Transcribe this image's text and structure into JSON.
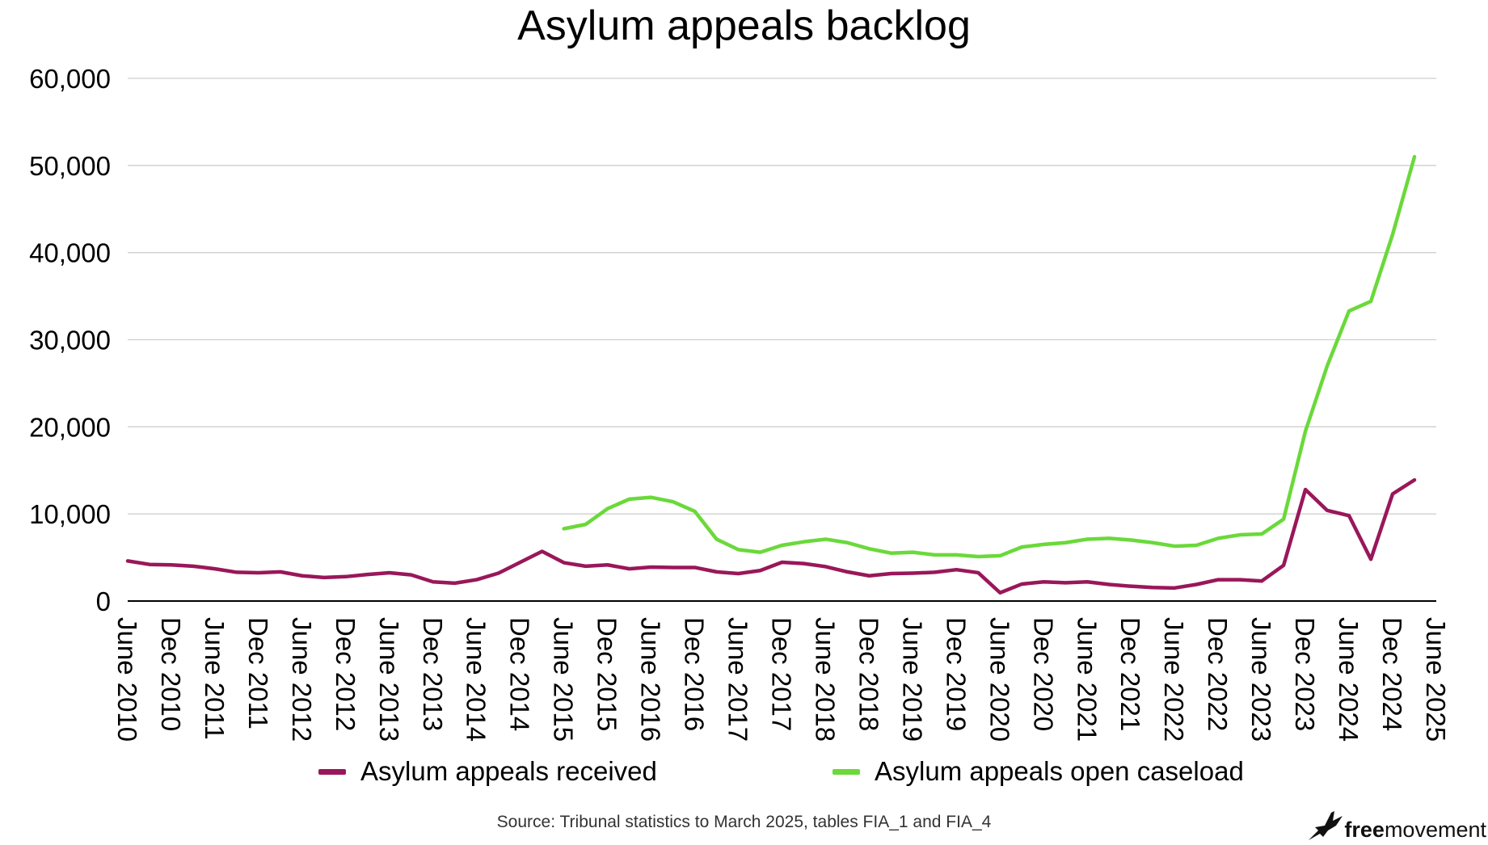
{
  "colors": {
    "received": "#99175a",
    "open": "#6ad93a",
    "grid": "#cfcfcf",
    "axis": "#000000"
  },
  "footer": {
    "source": "Source: Tribunal statistics to March 2025, tables FIA_1 and FIA_4",
    "logo_bold": "free",
    "logo_rest": "movement",
    "logo_icon": "bird-icon"
  },
  "chart_data": {
    "type": "line",
    "title": "Asylum appeals backlog",
    "xlabel": "",
    "ylabel": "",
    "ylim": [
      0,
      60000
    ],
    "yticks": [
      0,
      10000,
      20000,
      30000,
      40000,
      50000,
      60000
    ],
    "ytick_labels": [
      "0",
      "10,000",
      "20,000",
      "30,000",
      "40,000",
      "50,000",
      "60,000"
    ],
    "grid": true,
    "legend": "bottom",
    "xtick_labels": [
      "June 2010",
      "Dec 2010",
      "June 2011",
      "Dec 2011",
      "June 2012",
      "Dec 2012",
      "June 2013",
      "Dec 2013",
      "June 2014",
      "Dec 2014",
      "June 2015",
      "Dec 2015",
      "June 2016",
      "Dec 2016",
      "June 2017",
      "Dec 2017",
      "June 2018",
      "Dec 2018",
      "June 2019",
      "Dec 2019",
      "June 2020",
      "Dec 2020",
      "June 2021",
      "Dec 2021",
      "June 2022",
      "Dec 2022",
      "June 2023",
      "Dec 2023",
      "June 2024",
      "Dec 2024",
      "June 2025"
    ],
    "x": [
      "June 2010",
      "Sept 2010",
      "Dec 2010",
      "Mar 2011",
      "June 2011",
      "Sept 2011",
      "Dec 2011",
      "Mar 2012",
      "June 2012",
      "Sept 2012",
      "Dec 2012",
      "Mar 2013",
      "June 2013",
      "Sept 2013",
      "Dec 2013",
      "Mar 2014",
      "June 2014",
      "Sept 2014",
      "Dec 2014",
      "Mar 2015",
      "June 2015",
      "Sept 2015",
      "Dec 2015",
      "Mar 2016",
      "June 2016",
      "Sept 2016",
      "Dec 2016",
      "Mar 2017",
      "June 2017",
      "Sept 2017",
      "Dec 2017",
      "Mar 2018",
      "June 2018",
      "Sept 2018",
      "Dec 2018",
      "Mar 2019",
      "June 2019",
      "Sept 2019",
      "Dec 2019",
      "Mar 2020",
      "June 2020",
      "Sept 2020",
      "Dec 2020",
      "Mar 2021",
      "June 2021",
      "Sept 2021",
      "Dec 2021",
      "Mar 2022",
      "June 2022",
      "Sept 2022",
      "Dec 2022",
      "Mar 2023",
      "June 2023",
      "Sept 2023",
      "Dec 2023",
      "Mar 2024",
      "June 2024",
      "Sept 2024",
      "Dec 2024",
      "Mar 2025",
      "June 2025"
    ],
    "series": [
      {
        "name": "Asylum appeals received",
        "color": "#99175a",
        "values": [
          4600,
          4200,
          4150,
          4000,
          3700,
          3300,
          3250,
          3350,
          2900,
          2700,
          2800,
          3050,
          3250,
          3000,
          2200,
          2050,
          2450,
          3200,
          4450,
          5700,
          4400,
          4000,
          4150,
          3700,
          3900,
          3850,
          3850,
          3350,
          3150,
          3500,
          4450,
          4300,
          3950,
          3350,
          2900,
          3150,
          3200,
          3300,
          3600,
          3250,
          950,
          1950,
          2200,
          2100,
          2200,
          1900,
          1700,
          1550,
          1500,
          1900,
          2450,
          2450,
          2300,
          4100,
          12800,
          10400,
          9800,
          4800,
          12300,
          13900,
          null
        ]
      },
      {
        "name": "Asylum appeals open caseload",
        "color": "#6ad93a",
        "values": [
          null,
          null,
          null,
          null,
          null,
          null,
          null,
          null,
          null,
          null,
          null,
          null,
          null,
          null,
          null,
          null,
          null,
          null,
          null,
          null,
          8300,
          8800,
          10600,
          11700,
          11900,
          11400,
          10300,
          7100,
          5900,
          5600,
          6400,
          6800,
          7100,
          6700,
          6000,
          5500,
          5600,
          5300,
          5300,
          5100,
          5200,
          6200,
          6500,
          6700,
          7100,
          7200,
          7000,
          6700,
          6300,
          6400,
          7200,
          7600,
          7700,
          9400,
          19500,
          27000,
          33300,
          34400,
          42100,
          51000,
          null
        ]
      }
    ]
  }
}
